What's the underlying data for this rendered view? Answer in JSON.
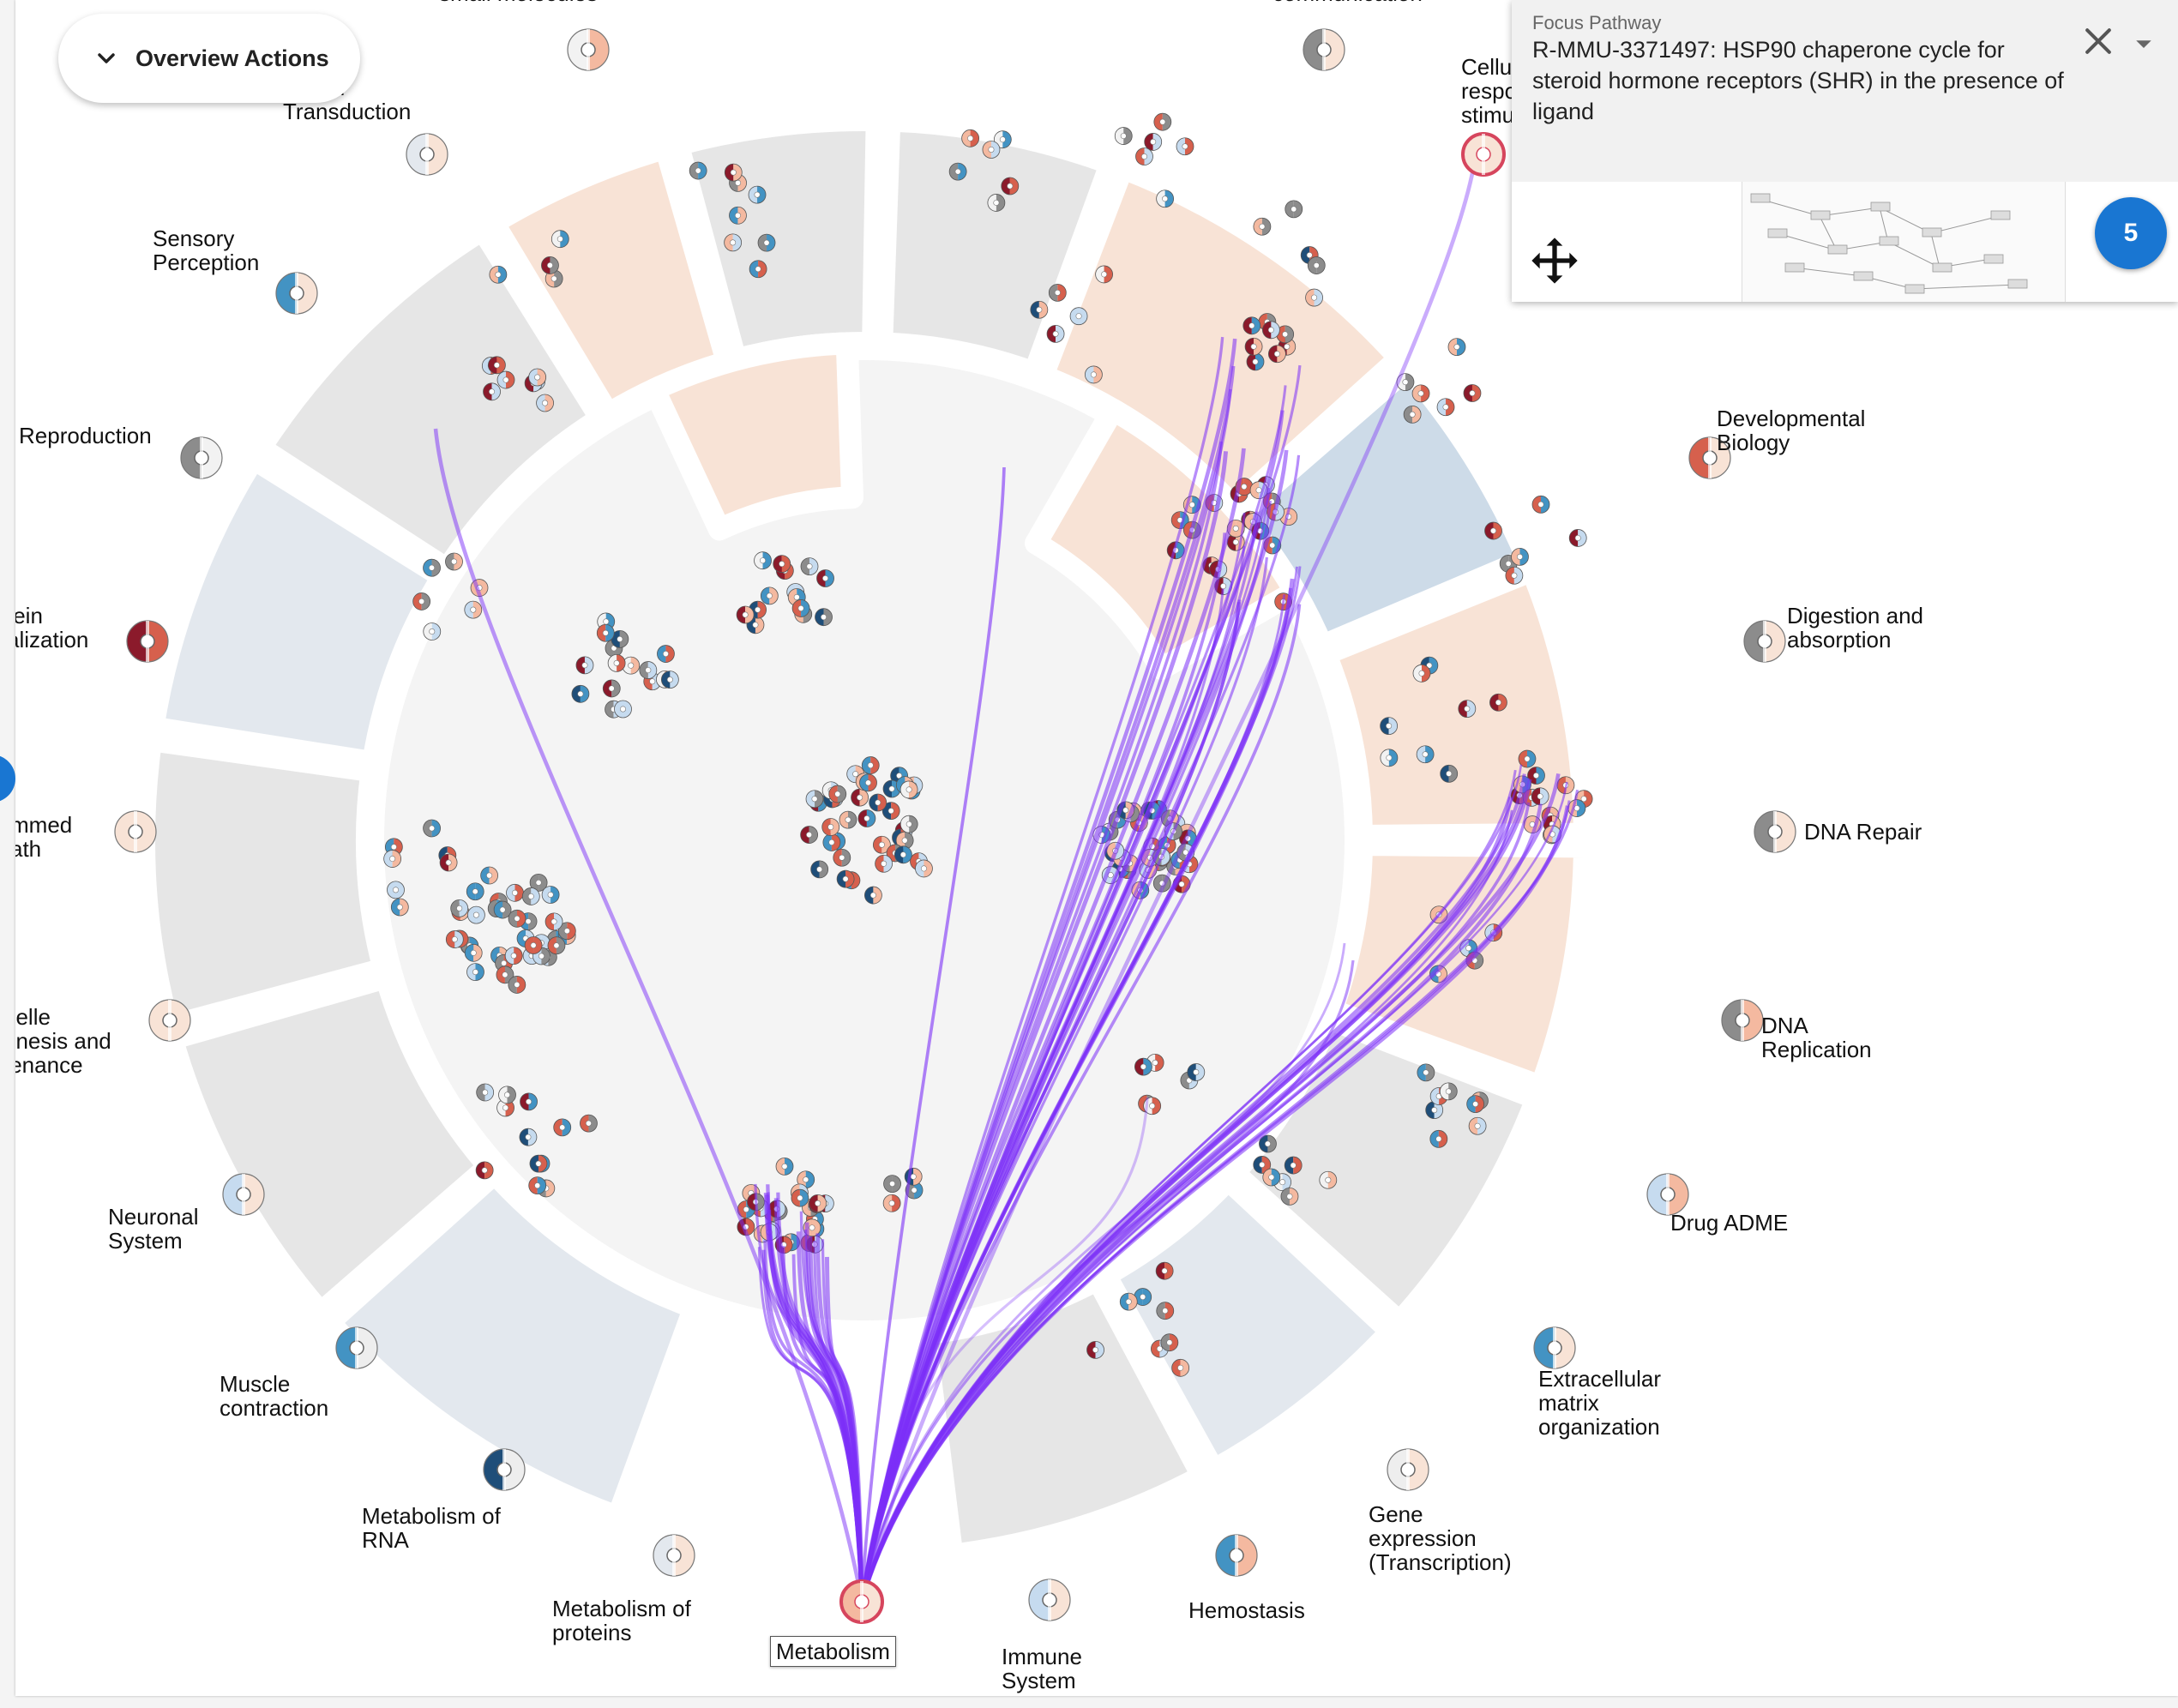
{
  "overview_actions": {
    "label": "Overview Actions"
  },
  "focus_panel": {
    "kicker": "Focus Pathway",
    "title": "R-MMU-3371497: HSP90 chaperone cycle for steroid hormone receptors (SHR) in the presence of ligand",
    "badge": "5"
  },
  "categories": [
    {
      "id": "small-molecules",
      "label": "small molecules"
    },
    {
      "id": "communication",
      "label": "communication"
    },
    {
      "id": "cellular-responses",
      "label": "Cellu\nrespo\nstimu"
    },
    {
      "id": "signal-transduction",
      "label": "Signal\nTransduction"
    },
    {
      "id": "sensory-perception",
      "label": "Sensory\nPerception"
    },
    {
      "id": "reproduction",
      "label": "Reproduction"
    },
    {
      "id": "protein-localization",
      "label": "tein\nalization"
    },
    {
      "id": "programmed-death",
      "label": "mmed\nath"
    },
    {
      "id": "organelle-biogenesis",
      "label": "nelle\nenesis and\ntenance"
    },
    {
      "id": "neuronal-system",
      "label": "Neuronal\nSystem"
    },
    {
      "id": "muscle-contraction",
      "label": "Muscle\ncontraction"
    },
    {
      "id": "metabolism-of-rna",
      "label": "Metabolism of\nRNA"
    },
    {
      "id": "metabolism-of-proteins",
      "label": "Metabolism of\nproteins"
    },
    {
      "id": "metabolism",
      "label": "Metabolism"
    },
    {
      "id": "immune-system",
      "label": "Immune\nSystem"
    },
    {
      "id": "hemostasis",
      "label": "Hemostasis"
    },
    {
      "id": "gene-expression",
      "label": "Gene\nexpression\n(Transcription)"
    },
    {
      "id": "extracellular-matrix",
      "label": "Extracellular\nmatrix\norganization"
    },
    {
      "id": "drug-adme",
      "label": "Drug ADME"
    },
    {
      "id": "dna-replication",
      "label": "DNA\nReplication"
    },
    {
      "id": "dna-repair",
      "label": "DNA Repair"
    },
    {
      "id": "digestion-absorption",
      "label": "Digestion and\nabsorption"
    },
    {
      "id": "developmental-biology",
      "label": "Developmental\nBiology"
    }
  ],
  "colors": {
    "edge": "#7b2ff7",
    "segment_gray": "#e6e6e6",
    "segment_blue_gray": "#e3e8ee",
    "segment_peach": "#f8e3d6",
    "segment_blue": "#cddbe8",
    "center_disc": "#f4f4f4",
    "glyph_red": "#d6604d",
    "glyph_dark_red": "#8b1a2b",
    "glyph_blue": "#4393c3",
    "glyph_dark_blue": "#1f4e79",
    "glyph_gray": "#8c8c8c",
    "glyph_light_blue": "#c6dbef",
    "glyph_peach": "#f4b9a0",
    "highlight": "#d6455d"
  },
  "icons": [
    "chevron-down-icon",
    "close-icon",
    "caret-down-icon",
    "move-icon"
  ]
}
